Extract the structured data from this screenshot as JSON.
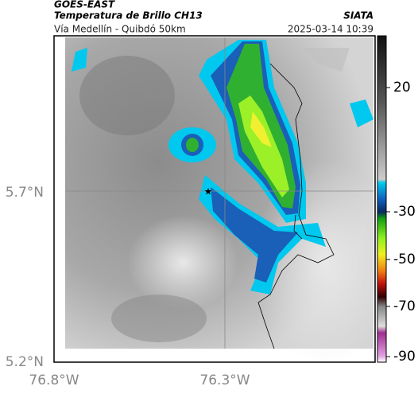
{
  "header": {
    "source": "GOES-EAST",
    "title": "Temperatura de Brillo CH13",
    "route": "Vía Medellín - Quibdó 50km",
    "brand": "SIATA",
    "timestamp": "2025-03-14 10:39"
  },
  "axes": {
    "lat_labels": [
      "5.7°N",
      "5.2°N"
    ],
    "lon_labels": [
      "76.8°W",
      "76.3°W"
    ]
  },
  "colorbar": {
    "ticks": [
      20,
      -30,
      -50,
      -70,
      -90
    ]
  }
}
